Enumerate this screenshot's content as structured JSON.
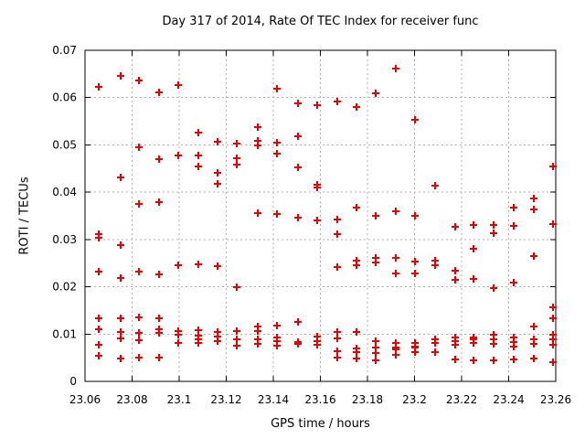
{
  "title": "Day 317 of 2014, Rate Of TEC Index for receiver func",
  "chart_data": {
    "type": "scatter",
    "title": "Day 317 of 2014, Rate Of TEC Index for receiver func",
    "xlabel": "GPS time / hours",
    "ylabel": "ROTI / TECUs",
    "xlim": [
      23.06,
      23.26
    ],
    "ylim": [
      0,
      0.07
    ],
    "xtick_values": [
      23.06,
      23.08,
      23.1,
      23.12,
      23.14,
      23.16,
      23.18,
      23.2,
      23.22,
      23.24,
      23.26
    ],
    "xtick_labels": [
      "23.06",
      "23.08",
      "23.1",
      "23.12",
      "23.14",
      "23.16",
      "23.18",
      "23.2",
      "23.22",
      "23.24",
      "23.26"
    ],
    "ytick_values": [
      0,
      0.01,
      0.02,
      0.03,
      0.04,
      0.05,
      0.06,
      0.07
    ],
    "ytick_labels": [
      "0",
      "0.01",
      "0.02",
      "0.03",
      "0.04",
      "0.05",
      "0.06",
      "0.07"
    ],
    "grid": true,
    "legend": "none",
    "marker": {
      "shape": "plus",
      "color": "#e80000",
      "size": 4,
      "stroke_width": 2
    },
    "grid_color": "#b0b0b0",
    "border_color": "#000000",
    "background_color": "#ffffff",
    "points": [
      [
        23.066,
        0.0623
      ],
      [
        23.066,
        0.0311
      ],
      [
        23.066,
        0.0304
      ],
      [
        23.066,
        0.0233
      ],
      [
        23.066,
        0.0133
      ],
      [
        23.066,
        0.011
      ],
      [
        23.066,
        0.0077
      ],
      [
        23.066,
        0.0054
      ],
      [
        23.075,
        0.0646
      ],
      [
        23.075,
        0.0431
      ],
      [
        23.075,
        0.0288
      ],
      [
        23.075,
        0.0219
      ],
      [
        23.075,
        0.0133
      ],
      [
        23.075,
        0.0104
      ],
      [
        23.075,
        0.0091
      ],
      [
        23.075,
        0.0048
      ],
      [
        23.083,
        0.0636
      ],
      [
        23.083,
        0.0495
      ],
      [
        23.083,
        0.0375
      ],
      [
        23.083,
        0.0233
      ],
      [
        23.083,
        0.0135
      ],
      [
        23.083,
        0.0103
      ],
      [
        23.083,
        0.0087
      ],
      [
        23.083,
        0.005
      ],
      [
        23.0915,
        0.0611
      ],
      [
        23.0915,
        0.047
      ],
      [
        23.0915,
        0.0379
      ],
      [
        23.0915,
        0.0226
      ],
      [
        23.0915,
        0.0133
      ],
      [
        23.0915,
        0.011
      ],
      [
        23.0915,
        0.0103
      ],
      [
        23.0915,
        0.0051
      ],
      [
        23.0997,
        0.0627
      ],
      [
        23.0997,
        0.0478
      ],
      [
        23.0997,
        0.0246
      ],
      [
        23.0997,
        0.0106
      ],
      [
        23.0997,
        0.0099
      ],
      [
        23.0997,
        0.0081
      ],
      [
        23.108,
        0.0526
      ],
      [
        23.108,
        0.0477
      ],
      [
        23.108,
        0.0455
      ],
      [
        23.108,
        0.0248
      ],
      [
        23.108,
        0.0109
      ],
      [
        23.108,
        0.0097
      ],
      [
        23.108,
        0.0089
      ],
      [
        23.108,
        0.0081
      ],
      [
        23.1163,
        0.0507
      ],
      [
        23.1163,
        0.0441
      ],
      [
        23.1163,
        0.0418
      ],
      [
        23.1163,
        0.0244
      ],
      [
        23.1163,
        0.0104
      ],
      [
        23.1163,
        0.0095
      ],
      [
        23.1163,
        0.0085
      ],
      [
        23.1246,
        0.0503
      ],
      [
        23.1246,
        0.0472
      ],
      [
        23.1246,
        0.0458
      ],
      [
        23.1246,
        0.0199
      ],
      [
        23.1246,
        0.0106
      ],
      [
        23.1246,
        0.0089
      ],
      [
        23.1246,
        0.0075
      ],
      [
        23.1335,
        0.0538
      ],
      [
        23.1335,
        0.0509
      ],
      [
        23.1335,
        0.0499
      ],
      [
        23.1335,
        0.0356
      ],
      [
        23.1335,
        0.0116
      ],
      [
        23.1335,
        0.0106
      ],
      [
        23.1335,
        0.0089
      ],
      [
        23.1335,
        0.0079
      ],
      [
        23.1417,
        0.0619
      ],
      [
        23.1417,
        0.0505
      ],
      [
        23.1417,
        0.0481
      ],
      [
        23.1417,
        0.0354
      ],
      [
        23.1417,
        0.0118
      ],
      [
        23.1417,
        0.0093
      ],
      [
        23.1417,
        0.0085
      ],
      [
        23.1417,
        0.0075
      ],
      [
        23.1503,
        0.0588
      ],
      [
        23.1503,
        0.0518
      ],
      [
        23.1503,
        0.0453
      ],
      [
        23.1503,
        0.0346
      ],
      [
        23.1503,
        0.0126
      ],
      [
        23.1503,
        0.0083
      ],
      [
        23.1503,
        0.0079
      ],
      [
        23.1585,
        0.0584
      ],
      [
        23.1585,
        0.0416
      ],
      [
        23.1585,
        0.0409
      ],
      [
        23.1585,
        0.034
      ],
      [
        23.1585,
        0.0095
      ],
      [
        23.1585,
        0.0086
      ],
      [
        23.1585,
        0.0078
      ],
      [
        23.1672,
        0.0592
      ],
      [
        23.1672,
        0.0342
      ],
      [
        23.1672,
        0.0311
      ],
      [
        23.1672,
        0.0242
      ],
      [
        23.1672,
        0.0105
      ],
      [
        23.1672,
        0.0091
      ],
      [
        23.1672,
        0.0064
      ],
      [
        23.1672,
        0.005
      ],
      [
        23.1752,
        0.058
      ],
      [
        23.1752,
        0.0367
      ],
      [
        23.1752,
        0.0255
      ],
      [
        23.1752,
        0.0246
      ],
      [
        23.1752,
        0.0104
      ],
      [
        23.1752,
        0.007
      ],
      [
        23.1752,
        0.0061
      ],
      [
        23.1752,
        0.0049
      ],
      [
        23.1836,
        0.0609
      ],
      [
        23.1836,
        0.035
      ],
      [
        23.1836,
        0.0261
      ],
      [
        23.1836,
        0.0251
      ],
      [
        23.1836,
        0.0085
      ],
      [
        23.1836,
        0.0072
      ],
      [
        23.1836,
        0.0059
      ],
      [
        23.1836,
        0.0044
      ],
      [
        23.192,
        0.0661
      ],
      [
        23.192,
        0.036
      ],
      [
        23.192,
        0.0261
      ],
      [
        23.192,
        0.0228
      ],
      [
        23.192,
        0.0081
      ],
      [
        23.192,
        0.0072
      ],
      [
        23.192,
        0.0068
      ],
      [
        23.192,
        0.0057
      ],
      [
        23.2002,
        0.0553
      ],
      [
        23.2002,
        0.035
      ],
      [
        23.2002,
        0.0253
      ],
      [
        23.2002,
        0.0228
      ],
      [
        23.2002,
        0.0081
      ],
      [
        23.2002,
        0.0074
      ],
      [
        23.2002,
        0.0071
      ],
      [
        23.2002,
        0.0061
      ],
      [
        23.2088,
        0.0414
      ],
      [
        23.2088,
        0.0255
      ],
      [
        23.2088,
        0.0246
      ],
      [
        23.2088,
        0.0089
      ],
      [
        23.2088,
        0.0081
      ],
      [
        23.2088,
        0.0061
      ],
      [
        23.2173,
        0.0327
      ],
      [
        23.2173,
        0.0234
      ],
      [
        23.2173,
        0.0215
      ],
      [
        23.2173,
        0.0093
      ],
      [
        23.2173,
        0.0085
      ],
      [
        23.2173,
        0.0077
      ],
      [
        23.2173,
        0.0046
      ],
      [
        23.2251,
        0.0331
      ],
      [
        23.2251,
        0.028
      ],
      [
        23.2251,
        0.0217
      ],
      [
        23.2251,
        0.0093
      ],
      [
        23.2251,
        0.0089
      ],
      [
        23.2251,
        0.0081
      ],
      [
        23.2251,
        0.0044
      ],
      [
        23.2337,
        0.0331
      ],
      [
        23.2337,
        0.0313
      ],
      [
        23.2337,
        0.0197
      ],
      [
        23.2337,
        0.0099
      ],
      [
        23.2337,
        0.0089
      ],
      [
        23.2337,
        0.0079
      ],
      [
        23.2337,
        0.0044
      ],
      [
        23.2423,
        0.0367
      ],
      [
        23.2423,
        0.0329
      ],
      [
        23.2423,
        0.0209
      ],
      [
        23.2423,
        0.0093
      ],
      [
        23.2423,
        0.0083
      ],
      [
        23.2423,
        0.0073
      ],
      [
        23.2423,
        0.0047
      ],
      [
        23.2505,
        0.0387
      ],
      [
        23.2505,
        0.0364
      ],
      [
        23.2505,
        0.0265
      ],
      [
        23.2505,
        0.0116
      ],
      [
        23.2505,
        0.0089
      ],
      [
        23.2505,
        0.0079
      ],
      [
        23.2505,
        0.0049
      ],
      [
        23.259,
        0.0455
      ],
      [
        23.259,
        0.0333
      ],
      [
        23.259,
        0.0157
      ],
      [
        23.259,
        0.0134
      ],
      [
        23.259,
        0.0099
      ],
      [
        23.259,
        0.0089
      ],
      [
        23.259,
        0.0078
      ],
      [
        23.259,
        0.0041
      ]
    ]
  }
}
